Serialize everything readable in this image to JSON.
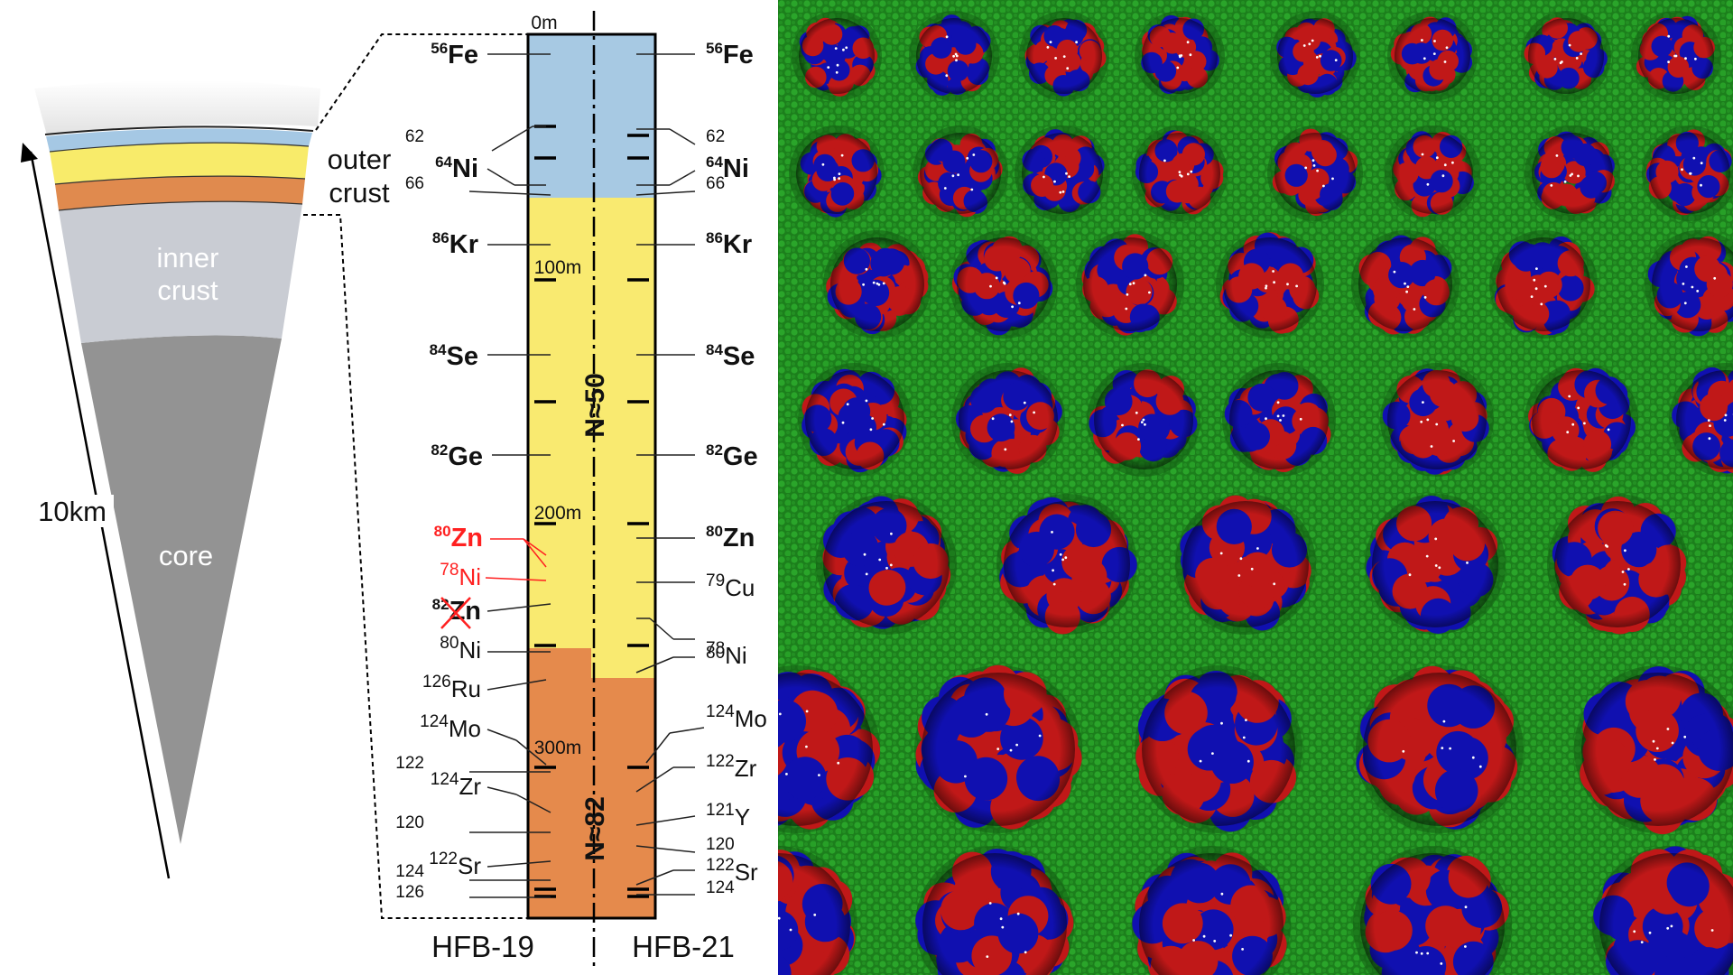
{
  "neutron_star": {
    "outer_crust_line1": "outer",
    "outer_crust_line2": "crust",
    "inner_crust_line1": "inner",
    "inner_crust_line2": "crust",
    "core": "core",
    "radius_label": "10km"
  },
  "column": {
    "depth_labels": [
      "0m",
      "100m",
      "200m",
      "300m"
    ],
    "regime_upper": "N≈50",
    "regime_lower": "N≈82",
    "left_model": "HFB-19",
    "right_model": "HFB-21",
    "colors": {
      "iron_layer": "#a7c9e3",
      "n50_layer": "#f9ea70",
      "n82_layer": "#e58a4c",
      "highlight": "#ff2020"
    }
  },
  "left_labels": [
    {
      "mass": "56",
      "element": "Fe",
      "bold": true
    },
    {
      "mass": "62",
      "element": "",
      "bold": false
    },
    {
      "mass": "64",
      "element": "Ni",
      "bold": true
    },
    {
      "mass": "66",
      "element": "",
      "bold": false
    },
    {
      "mass": "86",
      "element": "Kr",
      "bold": true
    },
    {
      "mass": "84",
      "element": "Se",
      "bold": true
    },
    {
      "mass": "82",
      "element": "Ge",
      "bold": true
    },
    {
      "mass": "80",
      "element": "Zn",
      "bold": true,
      "red": true
    },
    {
      "mass": "78",
      "element": "Ni",
      "bold": false,
      "red": true
    },
    {
      "mass": "82",
      "element": "Zn",
      "bold": true,
      "crossed": true
    },
    {
      "mass": "80",
      "element": "Ni",
      "bold": false
    },
    {
      "mass": "126",
      "element": "Ru",
      "bold": false
    },
    {
      "mass": "124",
      "element": "Mo",
      "bold": false
    },
    {
      "mass": "122",
      "element": "",
      "bold": false
    },
    {
      "mass": "124",
      "element": "Zr",
      "bold": false
    },
    {
      "mass": "120",
      "element": "",
      "bold": false
    },
    {
      "mass": "122",
      "element": "Sr",
      "bold": false
    },
    {
      "mass": "124",
      "element": "",
      "bold": false
    },
    {
      "mass": "126",
      "element": "",
      "bold": false
    }
  ],
  "right_labels": [
    {
      "mass": "56",
      "element": "Fe",
      "bold": true
    },
    {
      "mass": "62",
      "element": "",
      "bold": false
    },
    {
      "mass": "64",
      "element": "Ni",
      "bold": true
    },
    {
      "mass": "66",
      "element": "",
      "bold": false
    },
    {
      "mass": "86",
      "element": "Kr",
      "bold": true
    },
    {
      "mass": "84",
      "element": "Se",
      "bold": true
    },
    {
      "mass": "82",
      "element": "Ge",
      "bold": true
    },
    {
      "mass": "80",
      "element": "Zn",
      "bold": true
    },
    {
      "mass": "79",
      "element": "Cu",
      "bold": false
    },
    {
      "mass": "78",
      "element": "Ni",
      "bold": false
    },
    {
      "mass": "80",
      "element": "",
      "bold": false
    },
    {
      "mass": "124",
      "element": "Mo",
      "bold": false
    },
    {
      "mass": "122",
      "element": "Zr",
      "bold": false
    },
    {
      "mass": "121",
      "element": "Y",
      "bold": false
    },
    {
      "mass": "120",
      "element": "",
      "bold": false
    },
    {
      "mass": "122",
      "element": "Sr",
      "bold": false
    },
    {
      "mass": "124",
      "element": "",
      "bold": false
    }
  ],
  "simulation": {
    "background": "#1f8a1f",
    "proton_color": "#c01818",
    "neutron_color": "#1010b0",
    "free_neutron_color": "#2aa52a"
  }
}
